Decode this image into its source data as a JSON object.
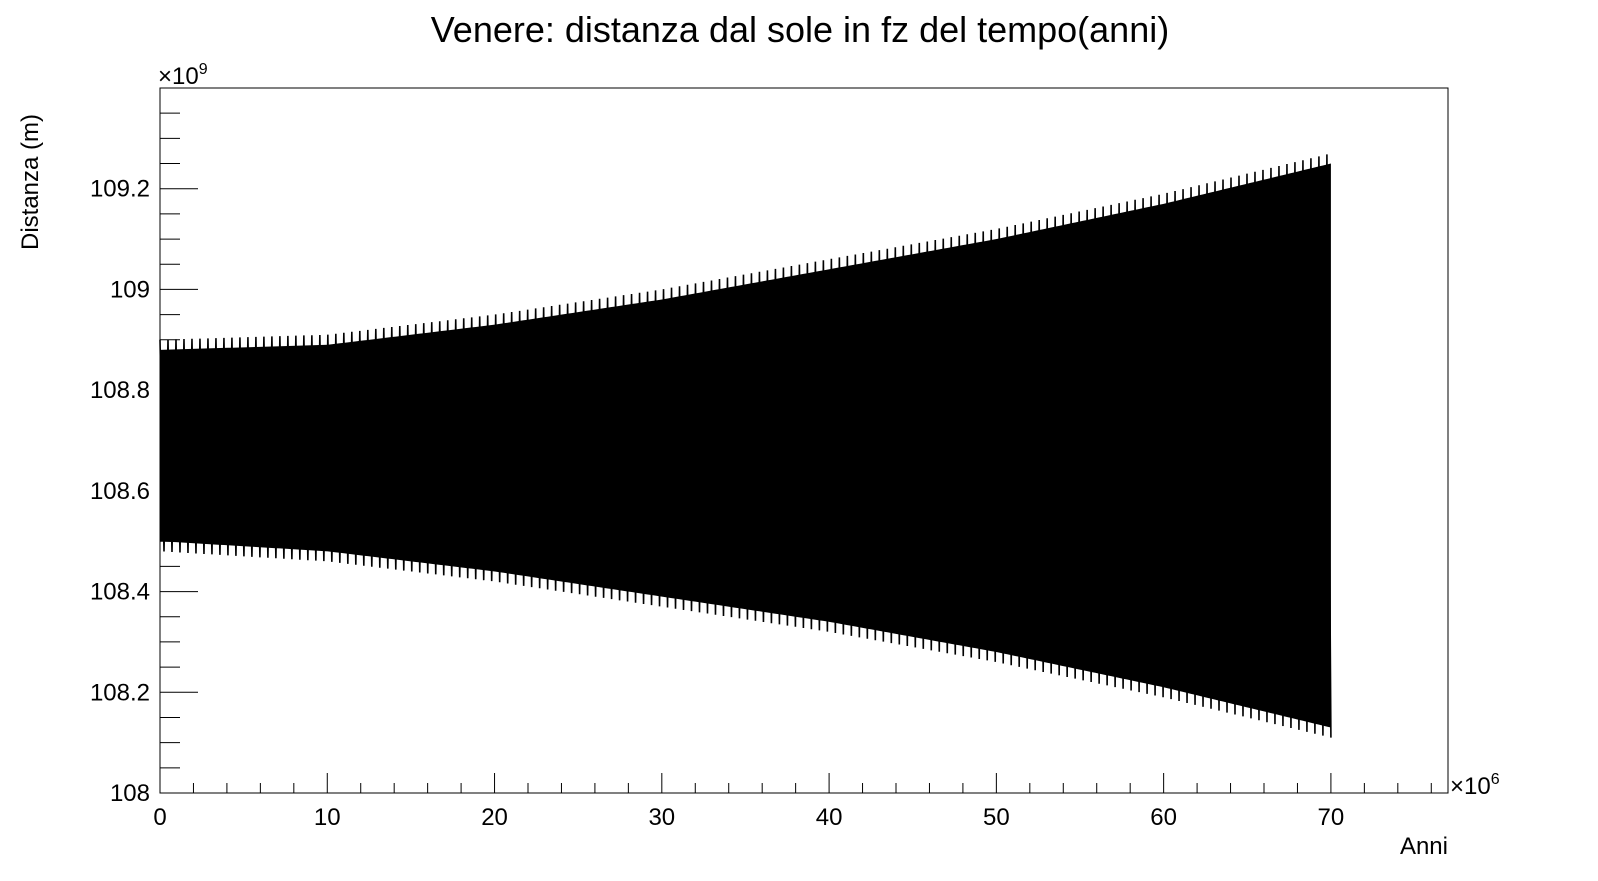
{
  "chart_data": {
    "type": "line",
    "title": "Venere: distanza dal sole in fz del tempo(anni)",
    "xlabel": "Anni",
    "ylabel": "Distanza (m)",
    "x_multiplier_label": "×10",
    "x_multiplier_exp": "6",
    "y_multiplier_label": "×10",
    "y_multiplier_exp": "9",
    "xlim": [
      0,
      77
    ],
    "ylim": [
      108.0,
      109.4
    ],
    "x_ticks": [
      0,
      10,
      20,
      30,
      40,
      50,
      60,
      70
    ],
    "x_tick_labels": [
      "0",
      "10",
      "20",
      "30",
      "40",
      "50",
      "60",
      "70"
    ],
    "y_ticks": [
      108.0,
      108.2,
      108.4,
      108.6,
      108.8,
      109.0,
      109.2
    ],
    "y_tick_labels": [
      "108",
      "108.2",
      "108.4",
      "108.6",
      "108.8",
      "109",
      "109.2"
    ],
    "grid": false,
    "legend": "none",
    "series": [
      {
        "color": "#000000",
        "x_range": [
          0,
          70
        ],
        "envelope": {
          "x": [
            0,
            10,
            20,
            30,
            40,
            50,
            60,
            70
          ],
          "upper": [
            108.9,
            108.91,
            108.95,
            109.0,
            109.06,
            109.12,
            109.19,
            109.27
          ],
          "lower": [
            108.48,
            108.46,
            108.42,
            108.37,
            108.32,
            108.26,
            108.19,
            108.11
          ]
        }
      }
    ]
  }
}
